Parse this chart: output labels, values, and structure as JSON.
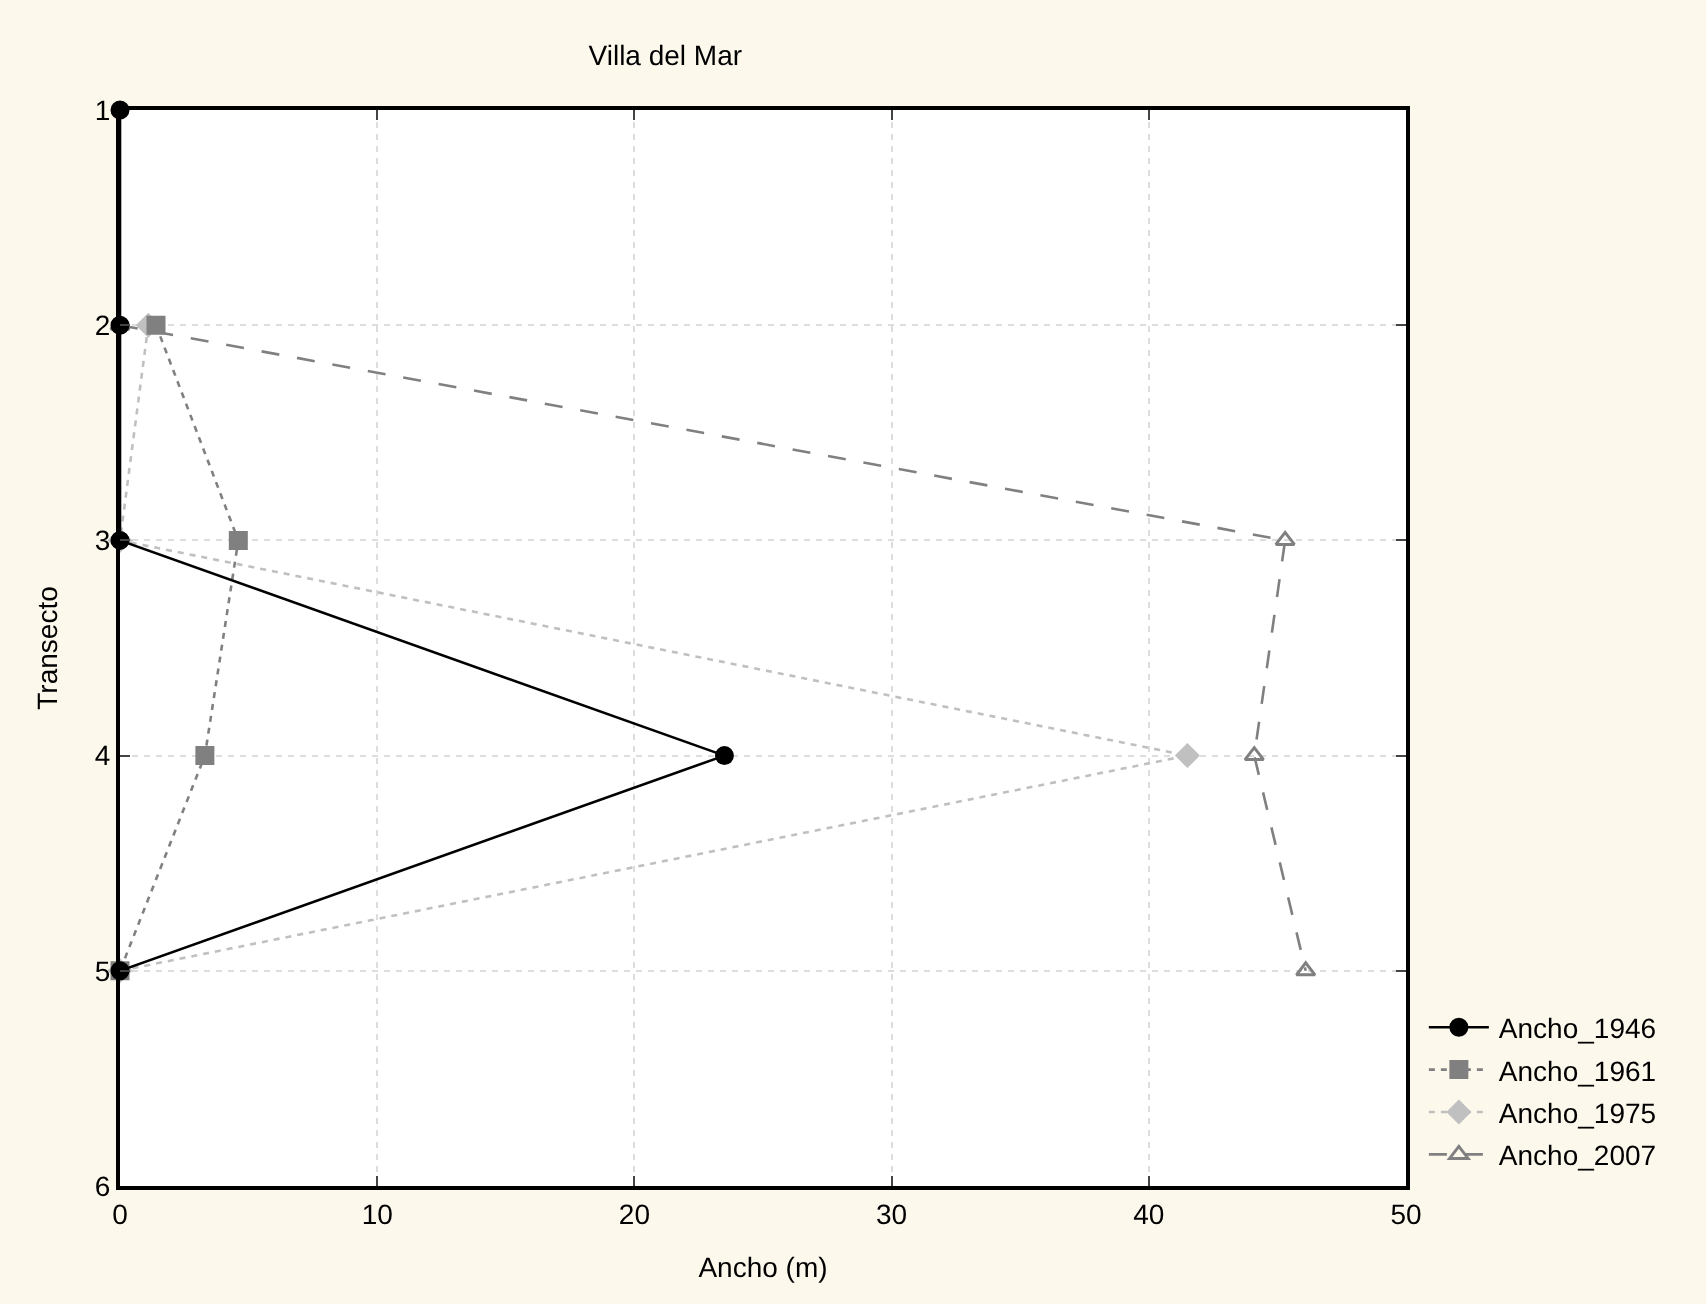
{
  "chart_data": {
    "type": "line",
    "title": "Villa del Mar",
    "xlabel": "Ancho (m)",
    "ylabel": "Transecto",
    "orientation": "horizontal",
    "x": [
      1,
      2,
      3,
      4,
      5
    ],
    "series": [
      {
        "name": "Ancho_1946",
        "color": "#000000",
        "values": [
          0,
          0,
          0,
          23.5,
          0
        ],
        "marker": "circle",
        "line_style": "solid"
      },
      {
        "name": "Ancho_1961",
        "color": "#808080",
        "values": [
          null,
          1.4,
          4.6,
          3.3,
          0
        ],
        "marker": "square",
        "line_style": "dotted"
      },
      {
        "name": "Ancho_1975",
        "color": "#c0c0c0",
        "values": [
          null,
          1.1,
          0,
          41.5,
          0
        ],
        "marker": "diamond",
        "line_style": "dotted"
      },
      {
        "name": "Ancho_2007",
        "color": "#808080",
        "values": [
          null,
          0,
          45.3,
          44.1,
          46.1
        ],
        "marker": "triangle",
        "line_style": "dashed"
      }
    ],
    "xlim": [
      0,
      50
    ],
    "xticks": [
      0,
      10,
      20,
      30,
      40,
      50
    ],
    "ylim": [
      6,
      1
    ],
    "yticks": [
      1,
      2,
      3,
      4,
      5,
      6
    ],
    "grid": true,
    "legend": "bottom right"
  }
}
